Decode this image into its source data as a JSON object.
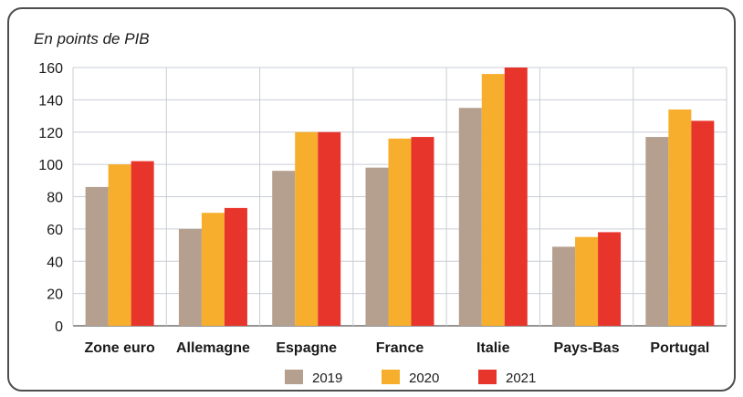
{
  "chart_data": {
    "type": "bar",
    "unit_label": "En points de PIB",
    "categories": [
      "Zone euro",
      "Allemagne",
      "Espagne",
      "France",
      "Italie",
      "Pays-Bas",
      "Portugal"
    ],
    "series": [
      {
        "name": "2019",
        "color": "#b5a090",
        "values": [
          86,
          60,
          96,
          98,
          135,
          49,
          117
        ]
      },
      {
        "name": "2020",
        "color": "#f7ae2c",
        "values": [
          100,
          70,
          120,
          116,
          156,
          55,
          134
        ]
      },
      {
        "name": "2021",
        "color": "#e8352c",
        "values": [
          102,
          73,
          120,
          117,
          160,
          58,
          127
        ]
      }
    ],
    "ylim": [
      0,
      160
    ],
    "yticks": [
      "0",
      "20",
      "40",
      "60",
      "80",
      "100",
      "120",
      "140",
      "160"
    ],
    "grid": true,
    "legend_position": "bottom"
  }
}
